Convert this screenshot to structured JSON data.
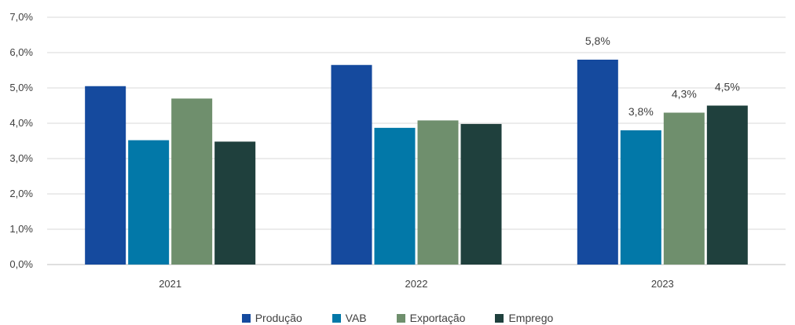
{
  "chart_data": {
    "type": "bar",
    "categories": [
      "2021",
      "2022",
      "2023"
    ],
    "series": [
      {
        "name": "Produção",
        "color": "#154a9e",
        "values": [
          5.05,
          5.65,
          5.8
        ]
      },
      {
        "name": "VAB",
        "color": "#0278a8",
        "values": [
          3.52,
          3.87,
          3.8
        ]
      },
      {
        "name": "Exportação",
        "color": "#6f8f6d",
        "values": [
          4.7,
          4.08,
          4.3
        ]
      },
      {
        "name": "Emprego",
        "color": "#1f403d",
        "values": [
          3.48,
          3.98,
          4.5
        ]
      }
    ],
    "data_labels": {
      "2023": [
        "5,8%",
        "3,8%",
        "4,3%",
        "4,5%"
      ]
    },
    "y_ticks": [
      "0,0%",
      "1,0%",
      "2,0%",
      "3,0%",
      "4,0%",
      "5,0%",
      "6,0%",
      "7,0%"
    ],
    "ylim": [
      0,
      7
    ],
    "grid": true,
    "legend_position": "bottom"
  }
}
